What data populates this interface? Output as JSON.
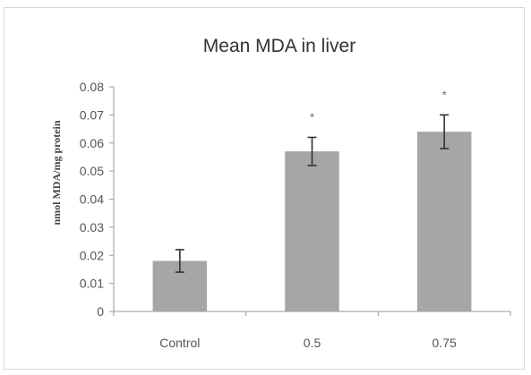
{
  "chart_data": {
    "type": "bar",
    "title": "Mean MDA in liver",
    "xlabel": "",
    "ylabel": "nmol MDA/mg protein",
    "categories": [
      "Control",
      "0.5",
      "0.75"
    ],
    "values": [
      0.018,
      0.057,
      0.064
    ],
    "errors": [
      0.004,
      0.005,
      0.006
    ],
    "annotations": [
      "",
      "*",
      "*"
    ],
    "ylim": [
      0,
      0.08
    ],
    "yticks": [
      "0",
      "0.01",
      "0.02",
      "0.03",
      "0.04",
      "0.05",
      "0.06",
      "0.07",
      "0.08"
    ],
    "grid": false,
    "legend": "none",
    "colors": {
      "bar": "#a6a6a6",
      "error_bar": "#333333",
      "axis": "#9a9a9a"
    }
  }
}
